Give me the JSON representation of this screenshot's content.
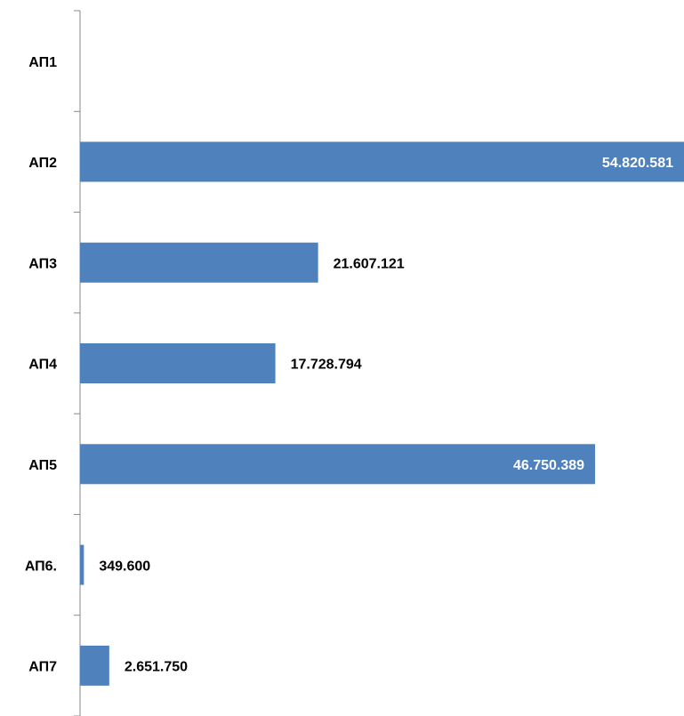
{
  "chart_data": {
    "type": "bar",
    "orientation": "horizontal",
    "categories": [
      "АП1",
      "АП2",
      "АП3",
      "АП4",
      "АП5",
      "АП6.",
      "АП7"
    ],
    "values": [
      null,
      54820581,
      21607121,
      17728794,
      46750389,
      349600,
      2651750
    ],
    "value_labels": [
      null,
      "54.820.581",
      "21.607.121",
      "17.728.794",
      "46.750.389",
      "349.600",
      "2.651.750"
    ],
    "color": "#4f81bd"
  }
}
